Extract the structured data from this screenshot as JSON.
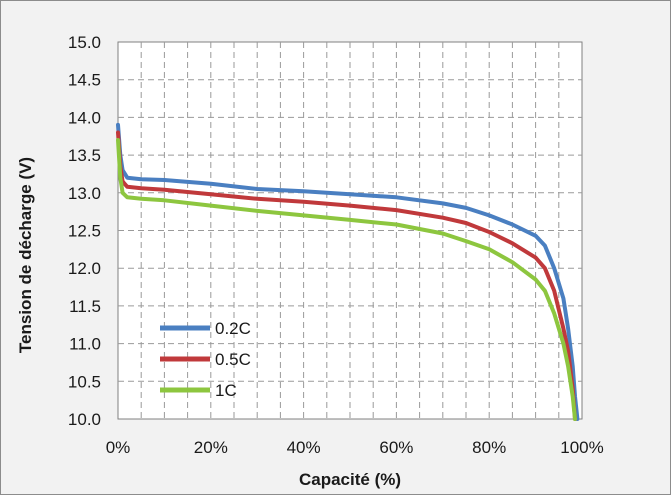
{
  "chart_data": {
    "type": "line",
    "title": "",
    "xlabel": "Capacité (%)",
    "ylabel": "Tension de décharge (V)",
    "xlim": [
      0,
      100
    ],
    "ylim": [
      10.0,
      15.0
    ],
    "xticks": [
      0,
      20,
      40,
      60,
      80,
      100
    ],
    "xtick_labels": [
      "0%",
      "20%",
      "40%",
      "60%",
      "80%",
      "100%"
    ],
    "yticks": [
      10.0,
      10.5,
      11.0,
      11.5,
      12.0,
      12.5,
      13.0,
      13.5,
      14.0,
      14.5,
      15.0
    ],
    "ytick_labels": [
      "10.0",
      "10.5",
      "11.0",
      "11.5",
      "12.0",
      "12.5",
      "13.0",
      "13.5",
      "14.0",
      "14.5",
      "15.0"
    ],
    "grid": true,
    "legend_position": "bottom-left",
    "series": [
      {
        "name": "0.2C",
        "color": "#4a7fc1",
        "points": [
          [
            0,
            13.9
          ],
          [
            0.5,
            13.5
          ],
          [
            1,
            13.3
          ],
          [
            2,
            13.2
          ],
          [
            5,
            13.18
          ],
          [
            10,
            13.17
          ],
          [
            20,
            13.12
          ],
          [
            30,
            13.05
          ],
          [
            40,
            13.02
          ],
          [
            50,
            12.98
          ],
          [
            60,
            12.94
          ],
          [
            70,
            12.86
          ],
          [
            75,
            12.8
          ],
          [
            80,
            12.7
          ],
          [
            85,
            12.58
          ],
          [
            90,
            12.43
          ],
          [
            92,
            12.3
          ],
          [
            94,
            12.0
          ],
          [
            96,
            11.6
          ],
          [
            97,
            11.2
          ],
          [
            98,
            10.7
          ],
          [
            98.5,
            10.3
          ],
          [
            99,
            10.0
          ]
        ]
      },
      {
        "name": "0.5C",
        "color": "#c0393b",
        "points": [
          [
            0,
            13.8
          ],
          [
            0.5,
            13.35
          ],
          [
            1,
            13.15
          ],
          [
            2,
            13.08
          ],
          [
            5,
            13.06
          ],
          [
            10,
            13.04
          ],
          [
            20,
            12.98
          ],
          [
            30,
            12.92
          ],
          [
            40,
            12.88
          ],
          [
            50,
            12.83
          ],
          [
            60,
            12.77
          ],
          [
            70,
            12.67
          ],
          [
            75,
            12.6
          ],
          [
            80,
            12.48
          ],
          [
            85,
            12.33
          ],
          [
            90,
            12.14
          ],
          [
            92,
            12.0
          ],
          [
            94,
            11.7
          ],
          [
            96,
            11.2
          ],
          [
            97,
            10.9
          ],
          [
            98,
            10.4
          ],
          [
            98.5,
            10.0
          ]
        ]
      },
      {
        "name": "1C",
        "color": "#8dc63f",
        "points": [
          [
            0,
            13.7
          ],
          [
            0.5,
            13.2
          ],
          [
            1,
            13.0
          ],
          [
            2,
            12.94
          ],
          [
            5,
            12.92
          ],
          [
            10,
            12.9
          ],
          [
            20,
            12.83
          ],
          [
            30,
            12.76
          ],
          [
            40,
            12.7
          ],
          [
            50,
            12.64
          ],
          [
            60,
            12.58
          ],
          [
            70,
            12.46
          ],
          [
            75,
            12.36
          ],
          [
            80,
            12.25
          ],
          [
            85,
            12.08
          ],
          [
            90,
            11.85
          ],
          [
            92,
            11.7
          ],
          [
            94,
            11.4
          ],
          [
            96,
            11.0
          ],
          [
            97,
            10.7
          ],
          [
            98,
            10.3
          ],
          [
            98.5,
            10.0
          ]
        ]
      }
    ]
  }
}
